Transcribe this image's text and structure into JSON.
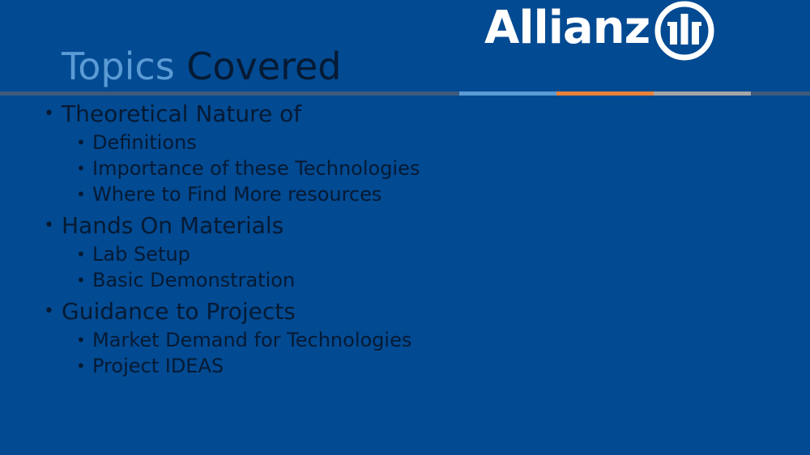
{
  "slide": {
    "title_part1": "Topics ",
    "title_part2": "Covered",
    "logo_text": "Allianz",
    "logo_icon": "allianz-eagle-bars-icon",
    "colors": {
      "background": "#024a92",
      "title_accent": "#5b9bd5",
      "text_dark": "#061a33",
      "bar_blue": "#5b9bd5",
      "bar_orange": "#e8823a",
      "bar_gray": "#a5a5a5"
    },
    "sections": [
      {
        "label": "Theoretical Nature of",
        "items": [
          "Definitions",
          "Importance of these Technologies",
          "Where to Find More resources"
        ]
      },
      {
        "label": "Hands On Materials",
        "items": [
          "Lab Setup",
          "Basic Demonstration"
        ]
      },
      {
        "label": "Guidance to Projects",
        "items": [
          "Market Demand for Technologies",
          "Project IDEAS"
        ]
      }
    ]
  }
}
